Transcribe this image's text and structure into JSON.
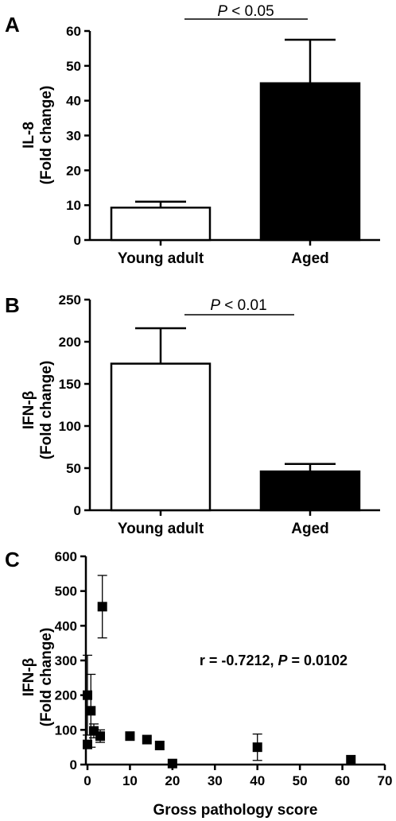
{
  "chart_data": [
    {
      "panel": "A",
      "type": "bar",
      "ylabel_line1": "IL-8",
      "ylabel_line2": "(Fold change)",
      "categories": [
        "Young adult",
        "Aged"
      ],
      "values": [
        9.3,
        45
      ],
      "error_upper": [
        11,
        57.5
      ],
      "bar_colors": [
        "#ffffff",
        "#000000"
      ],
      "ylim": [
        0,
        60
      ],
      "yticks": [
        0,
        10,
        20,
        30,
        40,
        50,
        60
      ],
      "significance": {
        "p_symbol": "P",
        "text": " < 0.05"
      }
    },
    {
      "panel": "B",
      "type": "bar",
      "ylabel_line1": "IFN-β",
      "ylabel_line2": "(Fold change)",
      "categories": [
        "Young adult",
        "Aged"
      ],
      "values": [
        174,
        46
      ],
      "error_upper": [
        216,
        55
      ],
      "bar_colors": [
        "#ffffff",
        "#000000"
      ],
      "ylim": [
        0,
        250
      ],
      "yticks": [
        0,
        50,
        100,
        150,
        200,
        250
      ],
      "significance": {
        "p_symbol": "P",
        "text": " < 0.01"
      }
    },
    {
      "panel": "C",
      "type": "scatter",
      "ylabel_line1": "IFN-β",
      "ylabel_line2": "(Fold change)",
      "xlabel": "Gross pathology score",
      "xlim": [
        0,
        70
      ],
      "ylim": [
        0,
        600
      ],
      "xticks": [
        0,
        10,
        20,
        30,
        40,
        50,
        60,
        70
      ],
      "yticks": [
        0,
        100,
        200,
        300,
        400,
        500,
        600
      ],
      "points": [
        {
          "x": 0,
          "y": 58,
          "err": 0
        },
        {
          "x": 0,
          "y": 200,
          "err": 115
        },
        {
          "x": 0.8,
          "y": 155,
          "err": 105
        },
        {
          "x": 1.5,
          "y": 97,
          "err": 20
        },
        {
          "x": 3,
          "y": 82,
          "err": 18
        },
        {
          "x": 3.5,
          "y": 455,
          "err": 90
        },
        {
          "x": 10,
          "y": 82,
          "err": 0
        },
        {
          "x": 14,
          "y": 72,
          "err": 0
        },
        {
          "x": 17,
          "y": 55,
          "err": 0
        },
        {
          "x": 20,
          "y": 3,
          "err": 0
        },
        {
          "x": 40,
          "y": 50,
          "err": 38
        },
        {
          "x": 62,
          "y": 14,
          "err": 0
        }
      ],
      "annotation": {
        "r_text": "r = -0.7212, ",
        "p_symbol": "P",
        "p_text": " = 0.0102"
      }
    }
  ]
}
